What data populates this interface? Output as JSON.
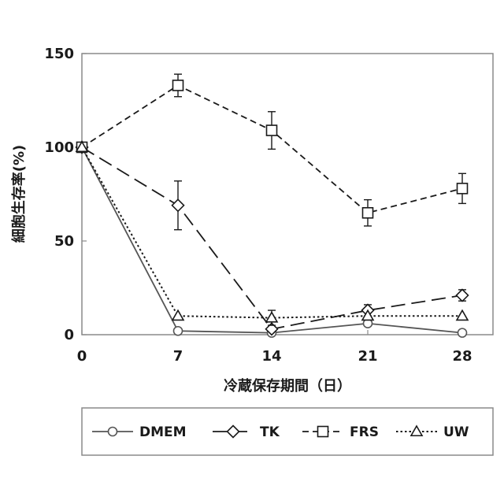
{
  "chart_data": {
    "type": "line",
    "title": "",
    "xlabel": "冷蔵保存期間（日）",
    "ylabel": "細胞生存率(%)",
    "x": [
      0,
      7,
      14,
      21,
      28
    ],
    "xticks": [
      "0",
      "7",
      "14",
      "21",
      "28"
    ],
    "ylim": [
      0,
      150
    ],
    "yticks": [
      "0",
      "50",
      "100",
      "150"
    ],
    "grid": false,
    "legend_position": "bottom",
    "series": [
      {
        "name": "DMEM",
        "marker": "circle",
        "dash": "solid",
        "color": "#555555",
        "values": [
          100,
          2,
          1,
          6,
          1
        ],
        "errors": [
          0,
          0,
          0,
          1,
          0
        ]
      },
      {
        "name": "TK",
        "marker": "diamond",
        "dash": "long-dash",
        "color": "#1a1a1a",
        "values": [
          100,
          69,
          3,
          13,
          21
        ],
        "errors": [
          0,
          13,
          0,
          3,
          3
        ]
      },
      {
        "name": "FRS",
        "marker": "square",
        "dash": "dash",
        "color": "#1a1a1a",
        "values": [
          100,
          133,
          109,
          65,
          78
        ],
        "errors": [
          0,
          6,
          10,
          7,
          8
        ]
      },
      {
        "name": "UW",
        "marker": "triangle",
        "dash": "dot",
        "color": "#1a1a1a",
        "values": [
          100,
          10,
          9,
          10,
          10
        ],
        "errors": [
          0,
          0,
          4,
          0,
          0
        ]
      }
    ]
  }
}
